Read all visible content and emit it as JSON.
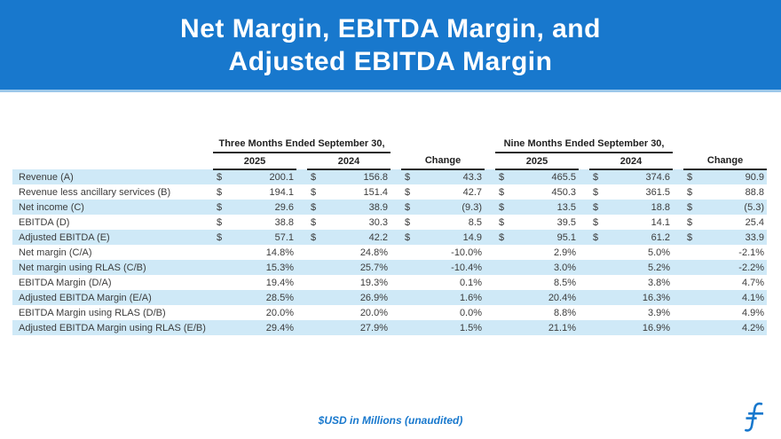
{
  "banner": {
    "title_line1": "Net Margin, EBITDA Margin, and",
    "title_line2": "Adjusted EBITDA Margin",
    "bg_color": "#1878cd"
  },
  "table": {
    "group_headers": {
      "three_months": "Three Months Ended September 30,",
      "nine_months": "Nine Months Ended September 30,"
    },
    "col_headers": {
      "y2025": "2025",
      "y2024": "2024",
      "change": "Change"
    },
    "currency_symbol": "$",
    "highlight_color": "#cfe9f7",
    "rows": [
      {
        "label": "Revenue (A)",
        "money": true,
        "values": [
          "200.1",
          "156.8",
          "43.3",
          "465.5",
          "374.6",
          "90.9"
        ]
      },
      {
        "label": "Revenue less ancillary services (B)",
        "money": true,
        "values": [
          "194.1",
          "151.4",
          "42.7",
          "450.3",
          "361.5",
          "88.8"
        ]
      },
      {
        "label": "Net income (C)",
        "money": true,
        "values": [
          "29.6",
          "38.9",
          "(9.3)",
          "13.5",
          "18.8",
          "(5.3)"
        ]
      },
      {
        "label": "EBITDA (D)",
        "money": true,
        "values": [
          "38.8",
          "30.3",
          "8.5",
          "39.5",
          "14.1",
          "25.4"
        ]
      },
      {
        "label": "Adjusted EBITDA (E)",
        "money": true,
        "values": [
          "57.1",
          "42.2",
          "14.9",
          "95.1",
          "61.2",
          "33.9"
        ]
      },
      {
        "label": "Net margin (C/A)",
        "money": false,
        "values": [
          "14.8%",
          "24.8%",
          "-10.0%",
          "2.9%",
          "5.0%",
          "-2.1%"
        ]
      },
      {
        "label": "Net margin using RLAS (C/B)",
        "money": false,
        "values": [
          "15.3%",
          "25.7%",
          "-10.4%",
          "3.0%",
          "5.2%",
          "-2.2%"
        ]
      },
      {
        "label": "EBITDA Margin (D/A)",
        "money": false,
        "values": [
          "19.4%",
          "19.3%",
          "0.1%",
          "8.5%",
          "3.8%",
          "4.7%"
        ]
      },
      {
        "label": "Adjusted EBITDA Margin (E/A)",
        "money": false,
        "values": [
          "28.5%",
          "26.9%",
          "1.6%",
          "20.4%",
          "16.3%",
          "4.1%"
        ]
      },
      {
        "label": "EBITDA Margin using RLAS (D/B)",
        "money": false,
        "values": [
          "20.0%",
          "20.0%",
          "0.0%",
          "8.8%",
          "3.9%",
          "4.9%"
        ]
      },
      {
        "label": "Adjusted EBITDA Margin using RLAS (E/B)",
        "money": false,
        "values": [
          "29.4%",
          "27.9%",
          "1.5%",
          "21.1%",
          "16.9%",
          "4.2%"
        ]
      }
    ]
  },
  "footer": {
    "note": "$USD in Millions (unaudited)",
    "logo": "f-logo"
  }
}
